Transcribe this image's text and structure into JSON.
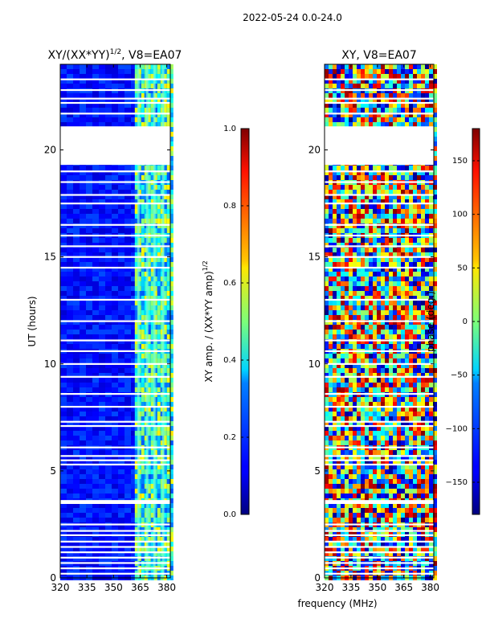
{
  "figure": {
    "suptitle": "2022-05-24 0.0-24.0",
    "shared_xlabel": "frequency (MHz)"
  },
  "chart_data": [
    {
      "type": "heatmap",
      "title": "XY/(XX*YY)",
      "title_superscript": "1/2",
      "title_suffix": ", V8=EA07",
      "xlabel": "",
      "ylabel": "UT (hours)",
      "xlim": [
        320,
        382
      ],
      "ylim": [
        0,
        24
      ],
      "xticks": [
        320,
        335,
        350,
        365,
        380
      ],
      "yticks": [
        0,
        5,
        10,
        15,
        20
      ],
      "colormap": "jet",
      "colorbar": {
        "label": "XY amp. / (XX*YY amp)",
        "label_superscript": "1/2",
        "range": [
          0.0,
          1.0
        ],
        "ticks": [
          "0.0",
          "0.2",
          "0.4",
          "0.6",
          "0.8",
          "1.0"
        ]
      },
      "data_gap_hours": [
        19.3,
        21.1
      ],
      "channel_columns_mhz": [
        364,
        369,
        373,
        378
      ],
      "flagged_rows_hours": [
        0.2,
        0.45,
        0.7,
        0.95,
        1.2,
        1.45,
        1.7,
        2.0,
        2.2,
        2.5,
        3.5,
        3.55,
        3.6,
        5.3,
        5.5,
        5.7,
        6.1,
        7.1,
        7.3,
        8.0,
        8.6,
        9.4,
        10.0,
        10.6,
        11.1,
        12.0,
        13.0,
        14.5,
        15.0,
        15.5,
        16.0,
        16.5,
        17.5,
        17.9,
        18.5,
        19.0,
        21.7,
        22.2,
        22.4,
        22.8,
        23.3
      ]
    },
    {
      "type": "heatmap",
      "title": "XY, V8=EA07",
      "xlabel": "frequency (MHz)",
      "ylabel": "",
      "xlim": [
        320,
        382
      ],
      "ylim": [
        0,
        24
      ],
      "xticks": [
        320,
        335,
        350,
        365,
        380
      ],
      "yticks": [
        0,
        5,
        10,
        15,
        20
      ],
      "colormap": "jet",
      "colorbar": {
        "label": "phase (deg.)",
        "range": [
          -180,
          180
        ],
        "ticks": [
          "150",
          "100",
          "50",
          "0",
          "−50",
          "−100",
          "−150"
        ],
        "tick_values": [
          150,
          100,
          50,
          0,
          -50,
          -100,
          -150
        ]
      },
      "data_gap_hours": [
        19.3,
        21.1
      ],
      "flagged_rows_hours": [
        0.2,
        0.45,
        0.7,
        0.95,
        1.2,
        1.45,
        1.7,
        2.0,
        2.2,
        2.5,
        3.5,
        3.55,
        3.6,
        5.3,
        5.5,
        5.7,
        6.1,
        7.1,
        7.3,
        8.0,
        8.6,
        9.4,
        10.0,
        10.6,
        11.1,
        12.0,
        13.0,
        14.5,
        15.0,
        15.5,
        16.0,
        16.5,
        17.5,
        17.9,
        18.5,
        19.0,
        21.7,
        22.2,
        22.4,
        22.8,
        23.3
      ]
    }
  ]
}
